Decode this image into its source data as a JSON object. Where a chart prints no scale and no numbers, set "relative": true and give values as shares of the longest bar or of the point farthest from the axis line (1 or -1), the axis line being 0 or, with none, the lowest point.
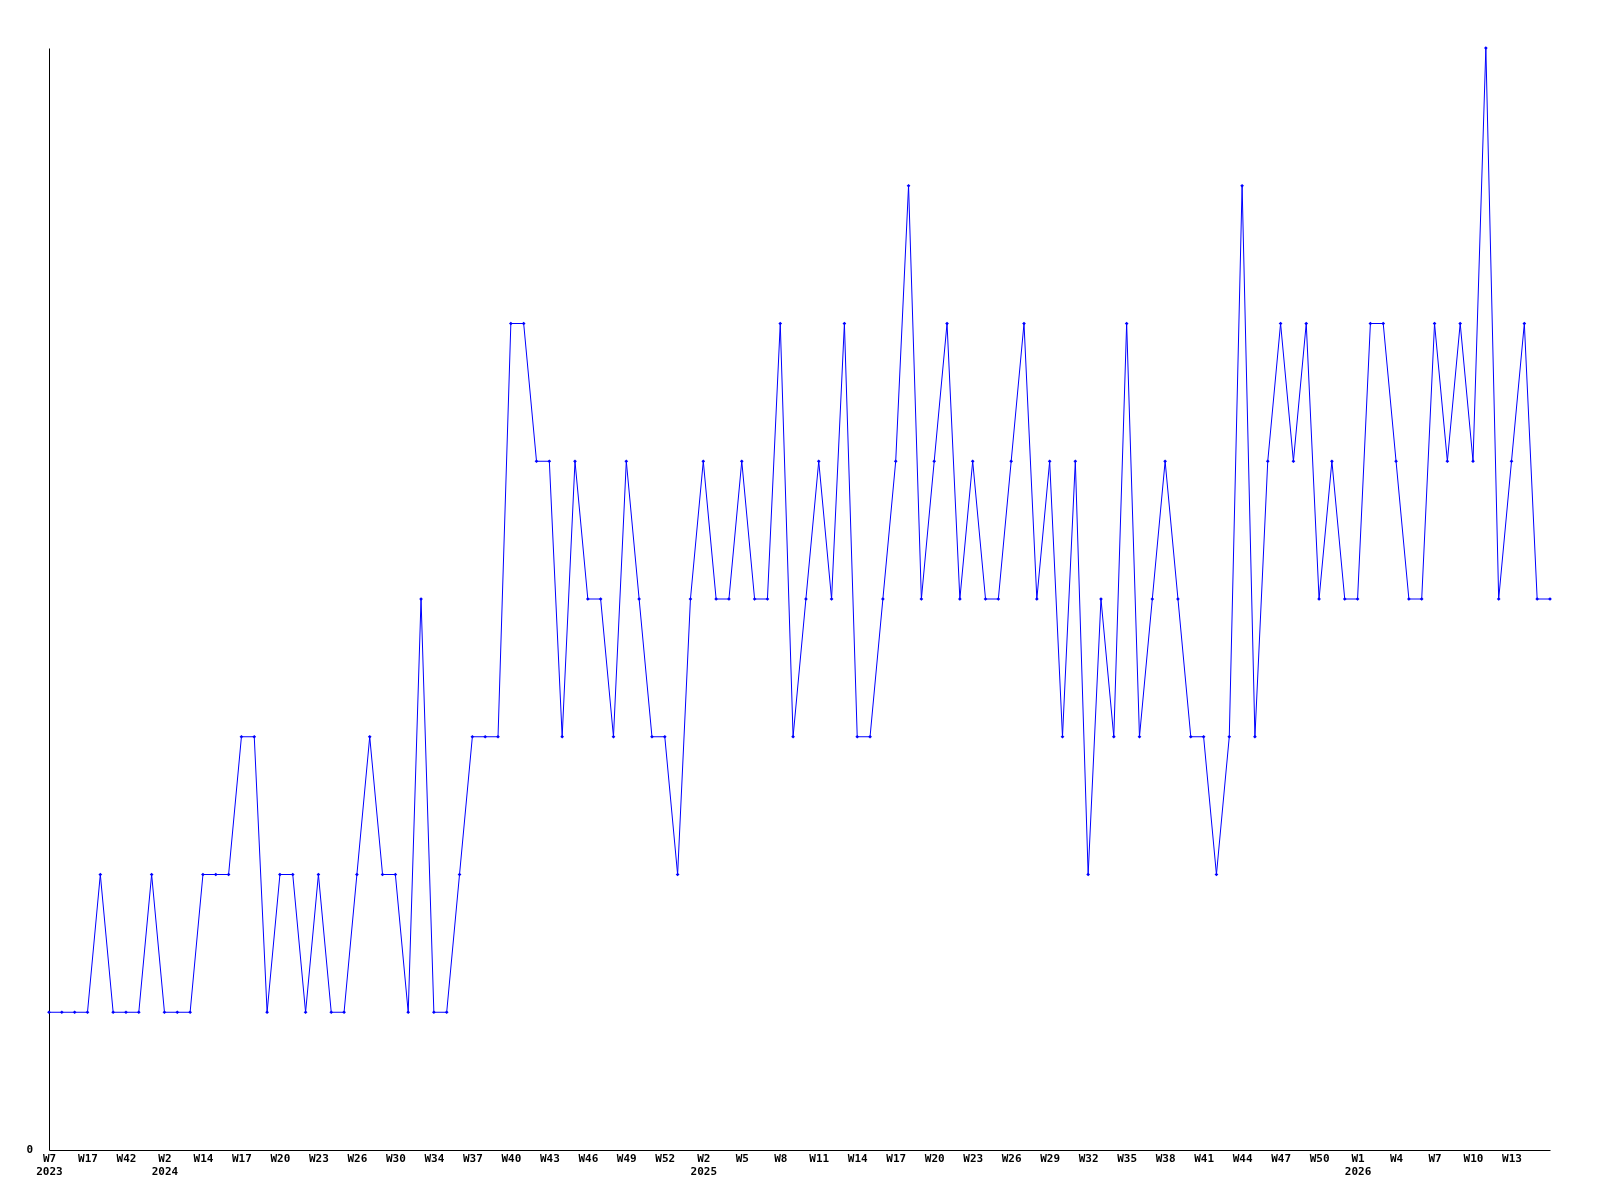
{
  "chart_data": {
    "type": "line",
    "relative": true,
    "annotations": [
      "0"
    ],
    "grid": false,
    "legend": false,
    "marker": "diamond",
    "line_style": "solid",
    "categories": [
      "W7\n2023",
      null,
      null,
      "W17",
      null,
      null,
      "W42",
      null,
      null,
      "W2\n2024",
      null,
      null,
      "W14",
      null,
      null,
      "W17",
      null,
      null,
      "W20",
      null,
      null,
      "W23",
      null,
      null,
      "W26",
      null,
      null,
      "W30",
      null,
      null,
      "W34",
      null,
      null,
      "W37",
      null,
      null,
      "W40",
      null,
      null,
      "W43",
      null,
      null,
      "W46",
      null,
      null,
      "W49",
      null,
      null,
      "W52",
      null,
      null,
      "W2\n2025",
      null,
      null,
      "W5",
      null,
      null,
      "W8",
      null,
      null,
      "W11",
      null,
      null,
      "W14",
      null,
      null,
      "W17",
      null,
      null,
      "W20",
      null,
      null,
      "W23",
      null,
      null,
      "W26",
      null,
      null,
      "W29",
      null,
      null,
      "W32",
      null,
      null,
      "W35",
      null,
      null,
      "W38",
      null,
      null,
      "W41",
      null,
      null,
      "W44",
      null,
      null,
      "W47",
      null,
      null,
      "W50",
      null,
      null,
      "W1\n2026",
      null,
      null,
      "W4",
      null,
      null,
      "W7",
      null,
      null,
      "W10",
      null,
      null,
      "W13",
      null,
      null,
      null
    ],
    "series": [
      {
        "color": "#0000ff",
        "values": [
          0.125,
          0.125,
          0.125,
          0.125,
          0.25,
          0.125,
          0.125,
          0.125,
          0.25,
          0.125,
          0.125,
          0.125,
          0.25,
          0.25,
          0.25,
          0.375,
          0.375,
          0.125,
          0.25,
          0.25,
          0.125,
          0.25,
          0.125,
          0.125,
          0.25,
          0.375,
          0.25,
          0.25,
          0.125,
          0.5,
          0.125,
          0.125,
          0.25,
          0.375,
          0.375,
          0.375,
          0.75,
          0.75,
          0.625,
          0.625,
          0.375,
          0.625,
          0.5,
          0.5,
          0.375,
          0.625,
          0.5,
          0.375,
          0.375,
          0.25,
          0.5,
          0.625,
          0.5,
          0.5,
          0.625,
          0.5,
          0.5,
          0.75,
          0.375,
          0.5,
          0.625,
          0.5,
          0.75,
          0.375,
          0.375,
          0.5,
          0.625,
          0.875,
          0.5,
          0.625,
          0.75,
          0.5,
          0.625,
          0.5,
          0.5,
          0.625,
          0.75,
          0.5,
          0.625,
          0.375,
          0.625,
          0.25,
          0.5,
          0.375,
          0.75,
          0.375,
          0.5,
          0.625,
          0.5,
          0.375,
          0.375,
          0.25,
          0.375,
          0.875,
          0.375,
          0.625,
          0.75,
          0.625,
          0.75,
          0.5,
          0.625,
          0.5,
          0.5,
          0.75,
          0.75,
          0.625,
          0.5,
          0.5,
          0.75,
          0.625,
          0.75,
          0.625,
          1,
          0.5,
          0.625,
          0.75,
          0.5,
          0.5
        ]
      }
    ]
  }
}
